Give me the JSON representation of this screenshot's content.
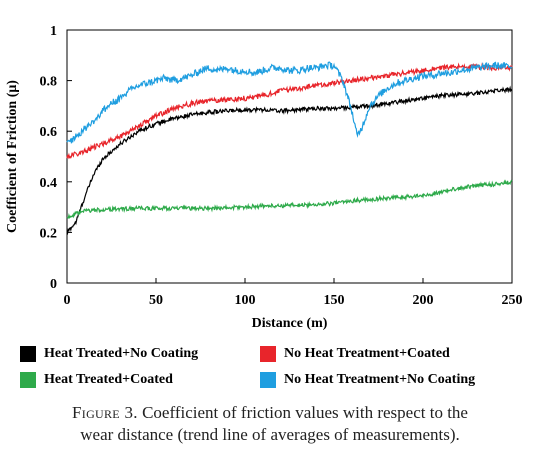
{
  "chart_data": {
    "type": "line",
    "xlabel": "Distance (m)",
    "ylabel": "Coefficient of Friction (μ)",
    "xlim": [
      0,
      250
    ],
    "ylim": [
      0,
      1
    ],
    "xticks": [
      "0",
      "50",
      "100",
      "150",
      "200",
      "250"
    ],
    "yticks": [
      "0",
      "0.2",
      "0.4",
      "0.6",
      "0.8",
      "1"
    ],
    "grid": false,
    "legend_position": "bottom",
    "series": [
      {
        "name": "Heat Treated+No Coating",
        "color": "#000000",
        "noise": 0.008,
        "points": [
          [
            0,
            0.2
          ],
          [
            5,
            0.24
          ],
          [
            10,
            0.34
          ],
          [
            15,
            0.43
          ],
          [
            20,
            0.49
          ],
          [
            25,
            0.52
          ],
          [
            30,
            0.55
          ],
          [
            40,
            0.6
          ],
          [
            50,
            0.63
          ],
          [
            60,
            0.65
          ],
          [
            70,
            0.665
          ],
          [
            80,
            0.675
          ],
          [
            90,
            0.68
          ],
          [
            100,
            0.685
          ],
          [
            110,
            0.685
          ],
          [
            120,
            0.68
          ],
          [
            130,
            0.685
          ],
          [
            140,
            0.69
          ],
          [
            150,
            0.69
          ],
          [
            160,
            0.695
          ],
          [
            170,
            0.7
          ],
          [
            180,
            0.71
          ],
          [
            190,
            0.72
          ],
          [
            200,
            0.73
          ],
          [
            210,
            0.74
          ],
          [
            220,
            0.745
          ],
          [
            230,
            0.75
          ],
          [
            240,
            0.76
          ],
          [
            250,
            0.765
          ]
        ]
      },
      {
        "name": "No Heat Treatment+Coated",
        "color": "#e8252b",
        "noise": 0.01,
        "points": [
          [
            0,
            0.5
          ],
          [
            10,
            0.52
          ],
          [
            20,
            0.55
          ],
          [
            30,
            0.58
          ],
          [
            40,
            0.62
          ],
          [
            50,
            0.66
          ],
          [
            60,
            0.69
          ],
          [
            70,
            0.71
          ],
          [
            80,
            0.72
          ],
          [
            90,
            0.725
          ],
          [
            100,
            0.73
          ],
          [
            110,
            0.74
          ],
          [
            120,
            0.76
          ],
          [
            130,
            0.77
          ],
          [
            140,
            0.78
          ],
          [
            150,
            0.79
          ],
          [
            160,
            0.8
          ],
          [
            170,
            0.81
          ],
          [
            180,
            0.82
          ],
          [
            190,
            0.83
          ],
          [
            200,
            0.84
          ],
          [
            210,
            0.85
          ],
          [
            220,
            0.855
          ],
          [
            230,
            0.855
          ],
          [
            240,
            0.85
          ],
          [
            250,
            0.85
          ]
        ]
      },
      {
        "name": "Heat Treated+Coated",
        "color": "#2eaa4a",
        "noise": 0.008,
        "points": [
          [
            0,
            0.26
          ],
          [
            10,
            0.285
          ],
          [
            20,
            0.29
          ],
          [
            40,
            0.295
          ],
          [
            60,
            0.295
          ],
          [
            80,
            0.295
          ],
          [
            100,
            0.3
          ],
          [
            110,
            0.305
          ],
          [
            120,
            0.305
          ],
          [
            140,
            0.31
          ],
          [
            150,
            0.315
          ],
          [
            160,
            0.325
          ],
          [
            180,
            0.335
          ],
          [
            200,
            0.345
          ],
          [
            210,
            0.36
          ],
          [
            220,
            0.375
          ],
          [
            230,
            0.385
          ],
          [
            240,
            0.39
          ],
          [
            250,
            0.4
          ]
        ]
      },
      {
        "name": "No Heat Treatment+No Coating",
        "color": "#1f9ee0",
        "noise": 0.014,
        "points": [
          [
            0,
            0.55
          ],
          [
            5,
            0.58
          ],
          [
            10,
            0.61
          ],
          [
            15,
            0.64
          ],
          [
            20,
            0.68
          ],
          [
            25,
            0.71
          ],
          [
            30,
            0.73
          ],
          [
            35,
            0.76
          ],
          [
            40,
            0.78
          ],
          [
            45,
            0.79
          ],
          [
            50,
            0.8
          ],
          [
            55,
            0.81
          ],
          [
            60,
            0.8
          ],
          [
            65,
            0.81
          ],
          [
            70,
            0.82
          ],
          [
            75,
            0.84
          ],
          [
            80,
            0.85
          ],
          [
            85,
            0.84
          ],
          [
            90,
            0.85
          ],
          [
            95,
            0.84
          ],
          [
            100,
            0.84
          ],
          [
            105,
            0.83
          ],
          [
            110,
            0.84
          ],
          [
            115,
            0.85
          ],
          [
            120,
            0.85
          ],
          [
            125,
            0.84
          ],
          [
            130,
            0.84
          ],
          [
            135,
            0.85
          ],
          [
            140,
            0.85
          ],
          [
            145,
            0.86
          ],
          [
            150,
            0.86
          ],
          [
            155,
            0.8
          ],
          [
            160,
            0.68
          ],
          [
            163,
            0.58
          ],
          [
            166,
            0.62
          ],
          [
            170,
            0.7
          ],
          [
            175,
            0.74
          ],
          [
            180,
            0.77
          ],
          [
            185,
            0.79
          ],
          [
            190,
            0.8
          ],
          [
            195,
            0.81
          ],
          [
            200,
            0.82
          ],
          [
            205,
            0.82
          ],
          [
            210,
            0.83
          ],
          [
            215,
            0.83
          ],
          [
            220,
            0.84
          ],
          [
            230,
            0.85
          ],
          [
            240,
            0.86
          ],
          [
            250,
            0.855
          ]
        ]
      }
    ]
  },
  "caption": {
    "figure_label": "Figure 3.",
    "text_line1": "Coefficient of friction values with respect to the",
    "text_line2": "wear distance (trend line of averages of measurements)."
  }
}
